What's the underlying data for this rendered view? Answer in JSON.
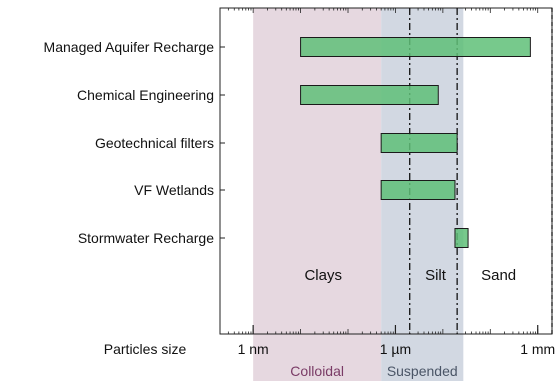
{
  "chart_data": {
    "type": "bar",
    "orientation": "horizontal-range",
    "x_scale": "log",
    "x_unit": "m",
    "xlim": [
      2e-10,
      0.002
    ],
    "xlabel": "Particles size",
    "x_ticks": [
      {
        "value": 1e-09,
        "label": "1 nm"
      },
      {
        "value": 1e-06,
        "label": "1 µm"
      },
      {
        "value": 0.001,
        "label": "1 mm"
      }
    ],
    "categories": [
      "Managed Aquifer Recharge",
      "Chemical Engineering",
      "Geotechnical filters",
      "VF Wetlands",
      "Stormwater Recharge"
    ],
    "ranges": [
      {
        "label": "Managed Aquifer Recharge",
        "min": 1e-08,
        "max": 0.0007
      },
      {
        "label": "Chemical Engineering",
        "min": 1e-08,
        "max": 8e-06
      },
      {
        "label": "Geotechnical filters",
        "min": 5e-07,
        "max": 2e-05
      },
      {
        "label": "VF Wetlands",
        "min": 5e-07,
        "max": 1.8e-05
      },
      {
        "label": "Stormwater Recharge",
        "min": 1.8e-05,
        "max": 3.4e-05
      }
    ],
    "regions": [
      {
        "label": "Colloidal",
        "from": 1e-09,
        "to": 5e-07,
        "color": "#e6d8e0"
      },
      {
        "label": "Suspended",
        "from": 5e-07,
        "to": 2.7e-05,
        "color": "#d2d8e2"
      }
    ],
    "region_label_colors": {
      "Colloidal": "#7a3b66",
      "Suspended": "#4a5566"
    },
    "boundaries": [
      {
        "value": 2e-06,
        "style": "dash-dot"
      },
      {
        "value": 2e-05,
        "style": "dash-dot"
      },
      {
        "value": 0.002,
        "style": "dashed"
      }
    ],
    "zones": [
      {
        "label": "Clays",
        "value": 3e-08
      },
      {
        "label": "Silt",
        "value": 7e-06
      },
      {
        "label": "Sand",
        "value": 0.00015
      }
    ],
    "bar_color": "#5fbf78",
    "bar_stroke": "#1a1a1a"
  }
}
